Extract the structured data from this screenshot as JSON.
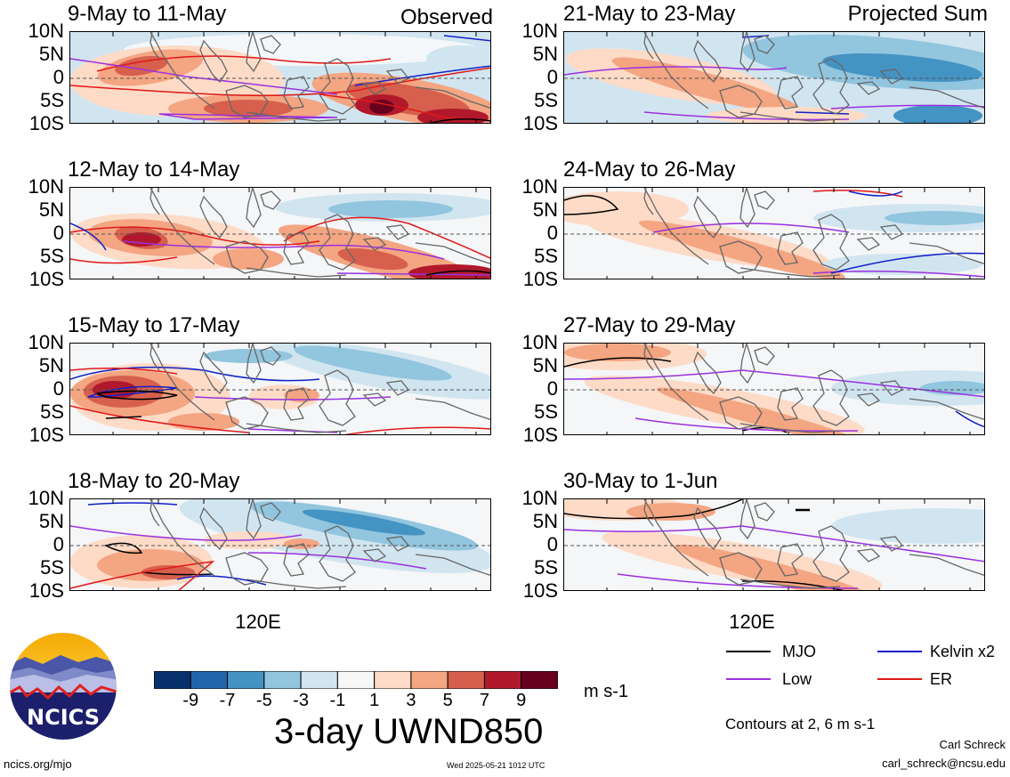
{
  "chart_data": {
    "type": "heatmap",
    "title": "3-day UWND850",
    "units": "m s-1",
    "ylim": [
      "10S",
      "10N"
    ],
    "y_ticks": [
      "10N",
      "5N",
      "0",
      "5S",
      "10S"
    ],
    "x_tick_label": "120E",
    "colorbar": {
      "levels": [
        "-9",
        "-7",
        "-5",
        "-3",
        "-1",
        "1",
        "3",
        "5",
        "7",
        "9"
      ],
      "colors": [
        "#08306b",
        "#2166ac",
        "#4393c3",
        "#92c5de",
        "#d1e5f0",
        "#f7f7f7",
        "#fddbc7",
        "#f4a582",
        "#d6604d",
        "#b2182b",
        "#67001f"
      ]
    },
    "columns": [
      {
        "label": "Observed",
        "panels": [
          "9-May to 11-May",
          "12-May to 14-May",
          "15-May to 17-May",
          "18-May to 20-May"
        ]
      },
      {
        "label": "Projected Sum",
        "panels": [
          "21-May to 23-May",
          "24-May to 26-May",
          "27-May to 29-May",
          "30-May to 1-Jun"
        ]
      }
    ],
    "contour_legend": [
      {
        "name": "MJO",
        "color": "#000000"
      },
      {
        "name": "Kelvin x2",
        "color": "#1020c8"
      },
      {
        "name": "Low",
        "color": "#9b30e0"
      },
      {
        "name": "ER",
        "color": "#e01818"
      }
    ],
    "contour_note": "Contours at 2, 6 m s-1"
  },
  "branding": {
    "logo_text": "NCICS",
    "url": "ncics.org/mjo",
    "timestamp": "Wed 2025-05-21 1012 UTC",
    "author": "Carl Schreck",
    "email": "carl_schreck@ncsu.edu"
  }
}
